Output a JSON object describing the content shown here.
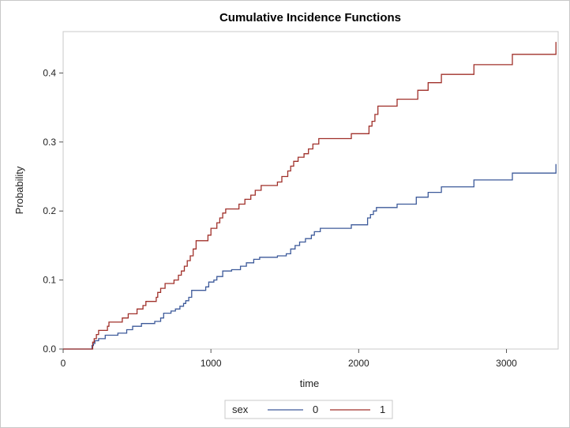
{
  "chart_data": {
    "type": "line",
    "title": "Cumulative Incidence Functions",
    "xlabel": "time",
    "ylabel": "Probability",
    "xlim": [
      0,
      3350
    ],
    "ylim": [
      0,
      0.46
    ],
    "xticks": [
      0,
      1000,
      2000,
      3000
    ],
    "xtick_labels": [
      "0",
      "1000",
      "2000",
      "3000"
    ],
    "yticks": [
      0,
      0.1,
      0.2,
      0.3,
      0.4
    ],
    "ytick_labels": [
      "0.0",
      "0.1",
      "0.2",
      "0.3",
      "0.4"
    ],
    "step": true,
    "grid": false,
    "legend": {
      "title": "sex",
      "position": "bottom-center",
      "entries": [
        "0",
        "1"
      ]
    },
    "series": [
      {
        "name": "0",
        "color": "#3d5a9a",
        "points": [
          [
            0,
            0
          ],
          [
            190,
            0
          ],
          [
            195,
            0.005
          ],
          [
            205,
            0.008
          ],
          [
            215,
            0.012
          ],
          [
            240,
            0.015
          ],
          [
            285,
            0.02
          ],
          [
            370,
            0.023
          ],
          [
            430,
            0.028
          ],
          [
            470,
            0.033
          ],
          [
            530,
            0.037
          ],
          [
            620,
            0.04
          ],
          [
            660,
            0.045
          ],
          [
            680,
            0.052
          ],
          [
            730,
            0.055
          ],
          [
            760,
            0.058
          ],
          [
            790,
            0.062
          ],
          [
            815,
            0.066
          ],
          [
            830,
            0.07
          ],
          [
            850,
            0.075
          ],
          [
            870,
            0.085
          ],
          [
            965,
            0.09
          ],
          [
            985,
            0.097
          ],
          [
            1020,
            0.1
          ],
          [
            1040,
            0.105
          ],
          [
            1080,
            0.113
          ],
          [
            1140,
            0.115
          ],
          [
            1200,
            0.12
          ],
          [
            1240,
            0.125
          ],
          [
            1290,
            0.13
          ],
          [
            1330,
            0.133
          ],
          [
            1420,
            0.133
          ],
          [
            1450,
            0.135
          ],
          [
            1510,
            0.138
          ],
          [
            1540,
            0.145
          ],
          [
            1570,
            0.15
          ],
          [
            1600,
            0.155
          ],
          [
            1640,
            0.16
          ],
          [
            1680,
            0.165
          ],
          [
            1700,
            0.17
          ],
          [
            1740,
            0.175
          ],
          [
            1950,
            0.18
          ],
          [
            2060,
            0.19
          ],
          [
            2080,
            0.195
          ],
          [
            2100,
            0.2
          ],
          [
            2120,
            0.205
          ],
          [
            2260,
            0.21
          ],
          [
            2390,
            0.22
          ],
          [
            2470,
            0.227
          ],
          [
            2560,
            0.235
          ],
          [
            2780,
            0.245
          ],
          [
            3040,
            0.255
          ],
          [
            3335,
            0.268
          ]
        ]
      },
      {
        "name": "1",
        "color": "#a0302a",
        "points": [
          [
            0,
            0
          ],
          [
            190,
            0
          ],
          [
            200,
            0.01
          ],
          [
            210,
            0.015
          ],
          [
            225,
            0.021
          ],
          [
            240,
            0.027
          ],
          [
            300,
            0.033
          ],
          [
            310,
            0.039
          ],
          [
            400,
            0.045
          ],
          [
            440,
            0.051
          ],
          [
            500,
            0.058
          ],
          [
            540,
            0.063
          ],
          [
            560,
            0.069
          ],
          [
            630,
            0.075
          ],
          [
            640,
            0.082
          ],
          [
            660,
            0.088
          ],
          [
            690,
            0.095
          ],
          [
            750,
            0.1
          ],
          [
            780,
            0.107
          ],
          [
            800,
            0.113
          ],
          [
            820,
            0.12
          ],
          [
            840,
            0.128
          ],
          [
            860,
            0.135
          ],
          [
            880,
            0.145
          ],
          [
            900,
            0.157
          ],
          [
            980,
            0.165
          ],
          [
            1000,
            0.175
          ],
          [
            1040,
            0.183
          ],
          [
            1060,
            0.19
          ],
          [
            1080,
            0.197
          ],
          [
            1100,
            0.203
          ],
          [
            1190,
            0.21
          ],
          [
            1230,
            0.217
          ],
          [
            1270,
            0.223
          ],
          [
            1300,
            0.23
          ],
          [
            1340,
            0.237
          ],
          [
            1450,
            0.242
          ],
          [
            1480,
            0.25
          ],
          [
            1520,
            0.258
          ],
          [
            1540,
            0.265
          ],
          [
            1560,
            0.272
          ],
          [
            1590,
            0.278
          ],
          [
            1630,
            0.283
          ],
          [
            1660,
            0.29
          ],
          [
            1690,
            0.297
          ],
          [
            1730,
            0.305
          ],
          [
            1950,
            0.312
          ],
          [
            2070,
            0.323
          ],
          [
            2090,
            0.33
          ],
          [
            2110,
            0.34
          ],
          [
            2130,
            0.352
          ],
          [
            2260,
            0.362
          ],
          [
            2400,
            0.375
          ],
          [
            2470,
            0.386
          ],
          [
            2560,
            0.398
          ],
          [
            2780,
            0.412
          ],
          [
            3040,
            0.427
          ],
          [
            3335,
            0.445
          ]
        ]
      }
    ]
  }
}
